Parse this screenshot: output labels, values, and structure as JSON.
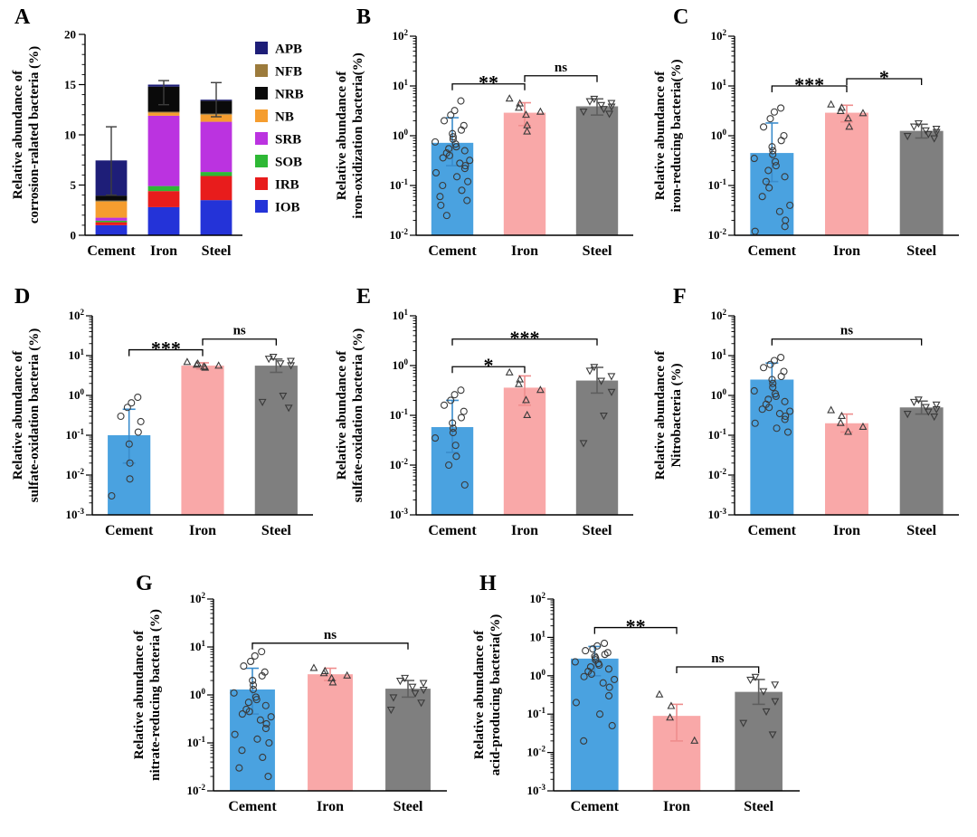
{
  "figure": {
    "background": "#ffffff"
  },
  "colors": {
    "bar": [
      "#4aa2e0",
      "#f9a8a8",
      "#7f7f7f"
    ],
    "error": [
      "#3a8ccc",
      "#ef8d8d",
      "#5f5f5f"
    ],
    "stacked_error": "#3d3d3d",
    "marker_stroke": "#3a3a3a",
    "axis": "#000000"
  },
  "markers": [
    "circle",
    "triangle-up",
    "triangle-down"
  ],
  "chart_data": [
    {
      "panel_label": "A",
      "type": "stacked-bar",
      "ylabel_lines": [
        "Relative abundance of",
        "corrosion-ralated bacteria (%)"
      ],
      "categories": [
        "Cement",
        "Iron",
        "Steel"
      ],
      "ylim": [
        0,
        20
      ],
      "yticks": [
        0,
        5,
        10,
        15,
        20
      ],
      "series": [
        {
          "name": "IOB",
          "color": "#2433d8",
          "values": [
            1.0,
            2.8,
            3.5
          ]
        },
        {
          "name": "IRB",
          "color": "#e81c1c",
          "values": [
            0.3,
            1.6,
            2.4
          ]
        },
        {
          "name": "SOB",
          "color": "#2eb835",
          "values": [
            0.15,
            0.5,
            0.4
          ]
        },
        {
          "name": "SRB",
          "color": "#bb33e0",
          "values": [
            0.3,
            7.0,
            5.0
          ]
        },
        {
          "name": "NB",
          "color": "#f59d2f",
          "values": [
            1.6,
            0.3,
            0.7
          ]
        },
        {
          "name": "NFB",
          "color": "#9c7b3c",
          "values": [
            0.1,
            0.1,
            0.1
          ]
        },
        {
          "name": "NRB",
          "color": "#0a0a0a",
          "values": [
            0.5,
            2.5,
            1.3
          ]
        },
        {
          "name": "APB",
          "color": "#1e1e78",
          "values": [
            3.5,
            0.2,
            0.1
          ]
        }
      ],
      "legend_order": [
        "APB",
        "NFB",
        "NRB",
        "NB",
        "SRB",
        "SOB",
        "IRB",
        "IOB"
      ],
      "error": [
        [
          4.0,
          10.8
        ],
        [
          13.0,
          15.4
        ],
        [
          11.8,
          15.2
        ]
      ]
    },
    {
      "panel_label": "B",
      "type": "log-bar-scatter",
      "ylabel_lines": [
        "Relative abundance of",
        "iron-oxidization bacteria(%)"
      ],
      "categories": [
        "Cement",
        "Iron",
        "Steel"
      ],
      "log_range": [
        -2,
        2
      ],
      "bars": [
        0.72,
        2.9,
        3.9
      ],
      "errors": [
        [
          0.25,
          2.3
        ],
        [
          1.6,
          4.6
        ],
        [
          2.6,
          5.5
        ]
      ],
      "points": [
        [
          5.0,
          3.2,
          2.6,
          2.0,
          1.6,
          1.3,
          1.1,
          0.95,
          0.85,
          0.75,
          0.68,
          0.6,
          0.55,
          0.5,
          0.45,
          0.4,
          0.36,
          0.32,
          0.28,
          0.25,
          0.22,
          0.18,
          0.15,
          0.12,
          0.1,
          0.08,
          0.06,
          0.05,
          0.04,
          0.025
        ],
        [
          5.5,
          4.4,
          3.6,
          3.0,
          2.6,
          1.6,
          1.2
        ],
        [
          5.6,
          5.0,
          4.6,
          4.2,
          3.9,
          3.5,
          3.1,
          2.8
        ]
      ],
      "sig": [
        {
          "from": 0,
          "to": 1,
          "label": "**",
          "y": 11
        },
        {
          "from": 1,
          "to": 2,
          "label": "ns",
          "y": 16
        }
      ]
    },
    {
      "panel_label": "C",
      "type": "log-bar-scatter",
      "ylabel_lines": [
        "Relative abundance of",
        "iron-reducing bacteria(%)"
      ],
      "categories": [
        "Cement",
        "Iron",
        "Steel"
      ],
      "log_range": [
        -2,
        2
      ],
      "bars": [
        0.45,
        2.9,
        1.25
      ],
      "errors": [
        [
          0.12,
          1.8
        ],
        [
          1.9,
          4.1
        ],
        [
          0.9,
          1.7
        ]
      ],
      "points": [
        [
          3.6,
          3.0,
          2.2,
          1.5,
          1.0,
          0.8,
          0.6,
          0.5,
          0.42,
          0.35,
          0.3,
          0.25,
          0.2,
          0.15,
          0.12,
          0.09,
          0.06,
          0.04,
          0.03,
          0.02,
          0.015,
          0.012
        ],
        [
          4.2,
          3.6,
          3.1,
          2.8,
          2.2,
          1.5
        ],
        [
          1.8,
          1.55,
          1.4,
          1.3,
          1.2,
          1.1,
          1.0,
          0.9
        ]
      ],
      "sig": [
        {
          "from": 0,
          "to": 1,
          "label": "***",
          "y": 10
        },
        {
          "from": 1,
          "to": 2,
          "label": "*",
          "y": 14
        }
      ]
    },
    {
      "panel_label": "D",
      "type": "log-bar-scatter",
      "ylabel_lines": [
        "Relative abundance of",
        "sulfate-oxidation bacteria (%)"
      ],
      "categories": [
        "Cement",
        "Iron",
        "Steel"
      ],
      "log_range": [
        -3,
        2
      ],
      "bars": [
        0.1,
        5.6,
        5.6
      ],
      "errors": [
        [
          0.02,
          0.45
        ],
        [
          4.6,
          6.6
        ],
        [
          3.8,
          8.2
        ]
      ],
      "points": [
        [
          0.9,
          0.65,
          0.5,
          0.3,
          0.22,
          0.12,
          0.06,
          0.02,
          0.008,
          0.003
        ],
        [
          6.8,
          6.2,
          5.8,
          5.5,
          5.2,
          4.9
        ],
        [
          9.5,
          8.5,
          7.5,
          6.5,
          5.8,
          1.0,
          0.7,
          0.5
        ]
      ],
      "sig": [
        {
          "from": 0,
          "to": 1,
          "label": "***",
          "y": 14
        },
        {
          "from": 1,
          "to": 2,
          "label": "ns",
          "y": 26
        }
      ]
    },
    {
      "panel_label": "E",
      "type": "log-bar-scatter",
      "ylabel_lines": [
        "Relative abundance of",
        "sulfate-oxidation bacteria (%)"
      ],
      "categories": [
        "Cement",
        "Iron",
        "Steel"
      ],
      "log_range": [
        -3,
        1
      ],
      "bars": [
        0.058,
        0.36,
        0.5
      ],
      "errors": [
        [
          0.018,
          0.2
        ],
        [
          0.16,
          0.62
        ],
        [
          0.28,
          0.92
        ]
      ],
      "points": [
        [
          0.32,
          0.26,
          0.2,
          0.16,
          0.12,
          0.09,
          0.07,
          0.055,
          0.045,
          0.035,
          0.025,
          0.015,
          0.01,
          0.004
        ],
        [
          0.72,
          0.52,
          0.42,
          0.32,
          0.2,
          0.1
        ],
        [
          0.95,
          0.8,
          0.62,
          0.5,
          0.3,
          0.1,
          0.028
        ]
      ],
      "sig": [
        {
          "from": 0,
          "to": 1,
          "label": "*",
          "y": 0.95
        },
        {
          "from": 0,
          "to": 2,
          "label": "***",
          "y": 3.4
        }
      ]
    },
    {
      "panel_label": "F",
      "type": "log-bar-scatter",
      "ylabel_lines": [
        "Relative abundance of",
        "Nitrobacteria (%)"
      ],
      "categories": [
        "Cement",
        "Iron",
        "Steel"
      ],
      "log_range": [
        -3,
        2
      ],
      "bars": [
        2.5,
        0.2,
        0.5
      ],
      "errors": [
        [
          0.9,
          6.5
        ],
        [
          0.12,
          0.34
        ],
        [
          0.34,
          0.72
        ]
      ],
      "points": [
        [
          9,
          7.5,
          6,
          5,
          4,
          3,
          2.5,
          2,
          1.6,
          1.3,
          1.1,
          0.95,
          0.8,
          0.7,
          0.6,
          0.5,
          0.45,
          0.4,
          0.35,
          0.3,
          0.25,
          0.2,
          0.15,
          0.12
        ],
        [
          0.42,
          0.3,
          0.2,
          0.16,
          0.12
        ],
        [
          0.8,
          0.7,
          0.6,
          0.52,
          0.46,
          0.4,
          0.35,
          0.3
        ]
      ],
      "sig": [
        {
          "from": 0,
          "to": 2,
          "label": "ns",
          "y": 26
        }
      ]
    },
    {
      "panel_label": "G",
      "type": "log-bar-scatter",
      "ylabel_lines": [
        "Relative abundance of",
        "nitrate-reducing bacteria (%)"
      ],
      "categories": [
        "Cement",
        "Iron",
        "Steel"
      ],
      "log_range": [
        -2,
        2
      ],
      "bars": [
        1.3,
        2.7,
        1.35
      ],
      "errors": [
        [
          0.4,
          3.6
        ],
        [
          2.0,
          3.6
        ],
        [
          0.9,
          2.0
        ]
      ],
      "points": [
        [
          8,
          6.5,
          5,
          4,
          3,
          2.5,
          2,
          1.6,
          1.3,
          1.1,
          0.9,
          0.8,
          0.7,
          0.6,
          0.5,
          0.45,
          0.4,
          0.35,
          0.3,
          0.25,
          0.2,
          0.15,
          0.12,
          0.1,
          0.07,
          0.05,
          0.03,
          0.02
        ],
        [
          3.6,
          3.1,
          2.8,
          2.5,
          2.2,
          1.8
        ],
        [
          2.3,
          2.0,
          1.8,
          1.5,
          1.3,
          1.1,
          0.9,
          0.7,
          0.5
        ]
      ],
      "sig": [
        {
          "from": 0,
          "to": 2,
          "label": "ns",
          "y": 12
        }
      ]
    },
    {
      "panel_label": "H",
      "type": "log-bar-scatter",
      "ylabel_lines": [
        "Relative abundance of",
        "acid-producing bacteria(%)"
      ],
      "categories": [
        "Cement",
        "Iron",
        "Steel"
      ],
      "log_range": [
        -3,
        2
      ],
      "bars": [
        2.8,
        0.09,
        0.38
      ],
      "errors": [
        [
          1.0,
          5.8
        ],
        [
          0.02,
          0.18
        ],
        [
          0.18,
          0.8
        ]
      ],
      "points": [
        [
          7,
          6,
          5,
          4.5,
          4,
          3.6,
          3.2,
          2.9,
          2.6,
          2.3,
          2.1,
          1.9,
          1.7,
          1.5,
          1.3,
          1.1,
          0.95,
          0.8,
          0.65,
          0.5,
          0.3,
          0.2,
          0.1,
          0.05,
          0.02
        ],
        [
          0.32,
          0.16,
          0.08,
          0.02
        ],
        [
          0.95,
          0.8,
          0.6,
          0.4,
          0.22,
          0.12,
          0.06,
          0.03
        ]
      ],
      "sig": [
        {
          "from": 0,
          "to": 1,
          "label": "**",
          "y": 18
        },
        {
          "from": 1,
          "to": 2,
          "label": "ns",
          "y": 1.7
        }
      ]
    }
  ]
}
